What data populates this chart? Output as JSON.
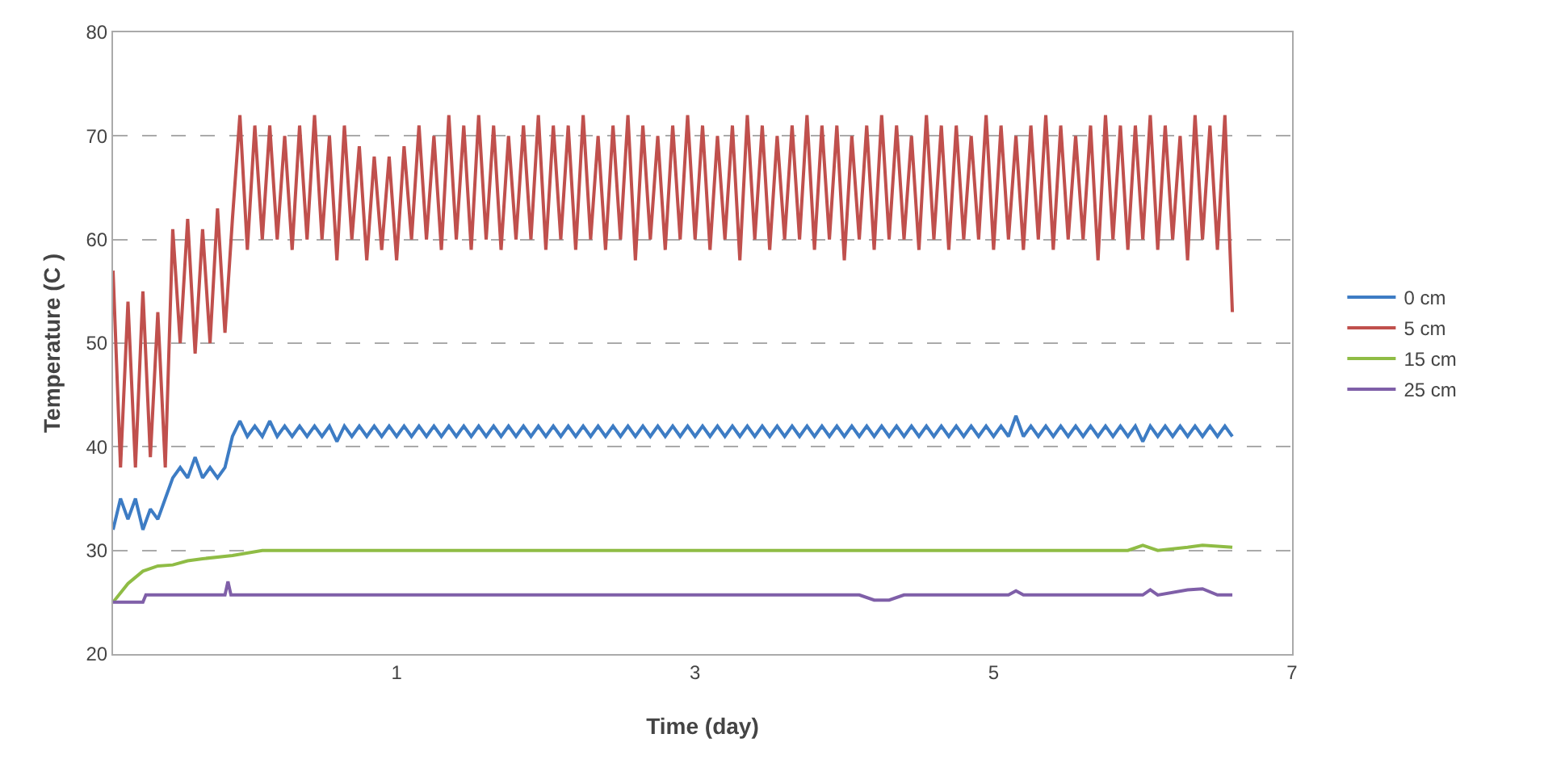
{
  "chart_data": {
    "type": "line",
    "xlabel": "Time (day)",
    "ylabel": "Temperature (C )",
    "x": [
      -0.9,
      -0.85,
      -0.8,
      -0.75,
      -0.7,
      -0.65,
      -0.6,
      -0.55,
      -0.5,
      -0.45,
      -0.4,
      -0.35,
      -0.3,
      -0.25,
      -0.2,
      -0.15,
      -0.1,
      -0.05,
      0,
      0.05,
      0.1,
      0.15,
      0.2,
      0.25,
      0.3,
      0.35,
      0.4,
      0.45,
      0.5,
      0.55,
      0.6,
      0.65,
      0.7,
      0.75,
      0.8,
      0.85,
      0.9,
      0.95,
      1,
      1.05,
      1.1,
      1.15,
      1.2,
      1.25,
      1.3,
      1.35,
      1.4,
      1.45,
      1.5,
      1.55,
      1.6,
      1.65,
      1.7,
      1.75,
      1.8,
      1.85,
      1.9,
      1.95,
      2,
      2.05,
      2.1,
      2.15,
      2.2,
      2.25,
      2.3,
      2.35,
      2.4,
      2.45,
      2.5,
      2.55,
      2.6,
      2.65,
      2.7,
      2.75,
      2.8,
      2.85,
      2.9,
      2.95,
      3,
      3.05,
      3.1,
      3.15,
      3.2,
      3.25,
      3.3,
      3.35,
      3.4,
      3.45,
      3.5,
      3.55,
      3.6,
      3.65,
      3.7,
      3.75,
      3.8,
      3.85,
      3.9,
      3.95,
      4,
      4.05,
      4.1,
      4.15,
      4.2,
      4.25,
      4.3,
      4.35,
      4.4,
      4.45,
      4.5,
      4.55,
      4.6,
      4.65,
      4.7,
      4.75,
      4.8,
      4.85,
      4.9,
      4.95,
      5,
      5.05,
      5.1,
      5.15,
      5.2,
      5.25,
      5.3,
      5.35,
      5.4,
      5.45,
      5.5,
      5.55,
      5.6,
      5.65,
      5.7,
      5.75,
      5.8,
      5.85,
      5.9,
      5.95,
      6,
      6.05,
      6.1,
      6.15,
      6.2,
      6.25,
      6.3,
      6.35,
      6.4,
      6.45,
      6.5,
      6.55,
      6.6
    ],
    "series": [
      {
        "name": "0 cm",
        "color": "#3d7cc4",
        "values": [
          32,
          35,
          33,
          35,
          32,
          34,
          33,
          35,
          37,
          38,
          37,
          39,
          37,
          38,
          37,
          38,
          41,
          42.5,
          41,
          42,
          41,
          42.5,
          41,
          42,
          41,
          42,
          41,
          42,
          41,
          42,
          40.5,
          42,
          41,
          42,
          41,
          42,
          41,
          42,
          41,
          42,
          41,
          42,
          41,
          42,
          41,
          42,
          41,
          42,
          41,
          42,
          41,
          42,
          41,
          42,
          41,
          42,
          41,
          42,
          41,
          42,
          41,
          42,
          41,
          42,
          41,
          42,
          41,
          42,
          41,
          42,
          41,
          42,
          41,
          42,
          41,
          42,
          41,
          42,
          41,
          42,
          41,
          42,
          41,
          42,
          41,
          42,
          41,
          42,
          41,
          42,
          41,
          42,
          41,
          42,
          41,
          42,
          41,
          42,
          41,
          42,
          41,
          42,
          41,
          42,
          41,
          42,
          41,
          42,
          41,
          42,
          41,
          42,
          41,
          42,
          41,
          42,
          41,
          42,
          41,
          42,
          41,
          43,
          41,
          42,
          41,
          42,
          41,
          42,
          41,
          42,
          41,
          42,
          41,
          42,
          41,
          42,
          41,
          42,
          40.5,
          42,
          41,
          42,
          41,
          42,
          41,
          42,
          41,
          42,
          41,
          42,
          41
        ]
      },
      {
        "name": "5 cm",
        "color": "#c0504d",
        "values": [
          57,
          38,
          54,
          38,
          55,
          39,
          53,
          38,
          61,
          50,
          62,
          49,
          61,
          50,
          63,
          51,
          62,
          72,
          59,
          71,
          60,
          71,
          60,
          70,
          59,
          71,
          60,
          72,
          60,
          70,
          58,
          71,
          60,
          69,
          58,
          68,
          59,
          68,
          58,
          69,
          60,
          71,
          60,
          70,
          59,
          72,
          60,
          71,
          59,
          72,
          60,
          71,
          59,
          70,
          60,
          71,
          60,
          72,
          59,
          71,
          60,
          71,
          59,
          72,
          60,
          70,
          59,
          71,
          60,
          72,
          58,
          71,
          60,
          70,
          59,
          71,
          60,
          72,
          60,
          71,
          59,
          70,
          60,
          71,
          58,
          72,
          60,
          71,
          59,
          70,
          60,
          71,
          60,
          72,
          59,
          71,
          60,
          71,
          58,
          70,
          60,
          71,
          59,
          72,
          60,
          71,
          60,
          70,
          59,
          72,
          60,
          71,
          59,
          71,
          60,
          70,
          60,
          72,
          59,
          71,
          60,
          70,
          59,
          71,
          60,
          72,
          59,
          71,
          60,
          70,
          60,
          71,
          58,
          72,
          60,
          71,
          59,
          71,
          60,
          72,
          59,
          71,
          60,
          70,
          58,
          72,
          60,
          71,
          59,
          72,
          53
        ]
      },
      {
        "name": "15 cm",
        "color": "#8fbc45",
        "x": [
          -0.9,
          -0.8,
          -0.7,
          -0.6,
          -0.5,
          -0.4,
          -0.3,
          -0.1,
          0.1,
          2,
          4,
          5.9,
          6,
          6.1,
          6.3,
          6.4,
          6.6
        ],
        "values": [
          25,
          26.8,
          28,
          28.5,
          28.6,
          29,
          29.2,
          29.5,
          30,
          30,
          30,
          30,
          30.5,
          30,
          30.3,
          30.5,
          30.3
        ]
      },
      {
        "name": "25 cm",
        "color": "#7f5fa8",
        "x": [
          -0.9,
          -0.7,
          -0.68,
          -0.15,
          -0.13,
          -0.11,
          4.1,
          4.2,
          4.3,
          4.4,
          5.1,
          5.15,
          5.2,
          6,
          6.05,
          6.1,
          6.3,
          6.4,
          6.5,
          6.6
        ],
        "values": [
          25,
          25,
          25.7,
          25.7,
          27,
          25.7,
          25.7,
          25.2,
          25.2,
          25.7,
          25.7,
          26.1,
          25.7,
          25.7,
          26.2,
          25.7,
          26.2,
          26.3,
          25.7,
          25.7
        ]
      }
    ],
    "xlim": [
      -0.9,
      7
    ],
    "xticks": [
      1,
      3,
      5,
      7
    ],
    "ylim": [
      20,
      80
    ],
    "yticks": [
      20,
      30,
      40,
      50,
      60,
      70,
      80
    ],
    "grid": "y",
    "legend": "right",
    "marker": "none",
    "line_style": "solid"
  }
}
